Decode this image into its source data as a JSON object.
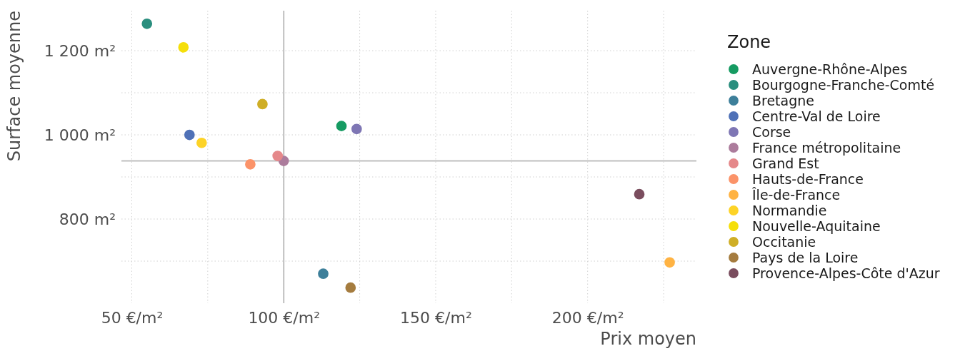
{
  "chart_data": {
    "type": "scatter",
    "xlabel": "Prix moyen",
    "ylabel": "Surface moyenne",
    "legend_title": "Zone",
    "legend": "right",
    "grid": true,
    "marker": "circle",
    "xlim": [
      46.6,
      235.8
    ],
    "ylim": [
      600,
      1295
    ],
    "xticks": [
      {
        "value": 50,
        "label": "50 €/m²"
      },
      {
        "value": 75,
        "label": null
      },
      {
        "value": 100,
        "label": "100 €/m²"
      },
      {
        "value": 125,
        "label": null
      },
      {
        "value": 150,
        "label": "150 €/m²"
      },
      {
        "value": 175,
        "label": null
      },
      {
        "value": 200,
        "label": "200 €/m²"
      },
      {
        "value": 225,
        "label": null
      }
    ],
    "yticks": [
      {
        "value": 700,
        "label": null
      },
      {
        "value": 800,
        "label": "800 m²"
      },
      {
        "value": 900,
        "label": null
      },
      {
        "value": 1000,
        "label": "1 000 m²"
      },
      {
        "value": 1100,
        "label": null
      },
      {
        "value": 1200,
        "label": "1 200 m²"
      }
    ],
    "ref_lines": [
      {
        "axis": "x",
        "value": 100,
        "color": "#bfbfbf"
      },
      {
        "axis": "y",
        "value": 938,
        "color": "#bfbfbf"
      }
    ],
    "series": [
      {
        "name": "Auvergne-Rhône-Alpes",
        "color": "#169b62",
        "x": [
          119
        ],
        "values": [
          1021
        ]
      },
      {
        "name": "Bourgogne-Franche-Comté",
        "color": "#2a8e7e",
        "x": [
          55
        ],
        "values": [
          1264
        ]
      },
      {
        "name": "Bretagne",
        "color": "#3d7f9a",
        "x": [
          113
        ],
        "values": [
          670
        ]
      },
      {
        "name": "Centre-Val de Loire",
        "color": "#4f71b7",
        "x": [
          69
        ],
        "values": [
          1000
        ]
      },
      {
        "name": "Corse",
        "color": "#7e76b4",
        "x": [
          124
        ],
        "values": [
          1014
        ]
      },
      {
        "name": "France métropolitaine",
        "color": "#ac7c9c",
        "x": [
          100
        ],
        "values": [
          938
        ]
      },
      {
        "name": "Grand Est",
        "color": "#e5888a",
        "x": [
          98
        ],
        "values": [
          950
        ]
      },
      {
        "name": "Hauts-de-France",
        "color": "#fb9369",
        "x": [
          89
        ],
        "values": [
          930
        ]
      },
      {
        "name": "Île-de-France",
        "color": "#ffb343",
        "x": [
          227
        ],
        "values": [
          697
        ]
      },
      {
        "name": "Normandie",
        "color": "#fdd327",
        "x": [
          73
        ],
        "values": [
          981
        ]
      },
      {
        "name": "Nouvelle-Aquitaine",
        "color": "#f5df0a",
        "x": [
          67
        ],
        "values": [
          1208
        ]
      },
      {
        "name": "Occitanie",
        "color": "#cfae26",
        "x": [
          93
        ],
        "values": [
          1073
        ]
      },
      {
        "name": "Pays de la Loire",
        "color": "#a57c3f",
        "x": [
          122
        ],
        "values": [
          637
        ]
      },
      {
        "name": "Provence-Alpes-Côte d'Azur",
        "color": "#7a4d5e",
        "x": [
          217
        ],
        "values": [
          859
        ]
      }
    ]
  }
}
